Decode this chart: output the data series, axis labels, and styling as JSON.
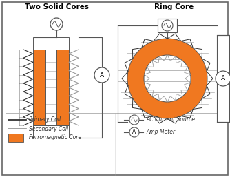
{
  "title_left": "Two Solid Cores",
  "title_right": "Ring Core",
  "orange_color": "#F07820",
  "primary_coil_color": "#333333",
  "secondary_coil_color": "#999999",
  "wire_color": "#555555",
  "legend_items_left": [
    "Primary Coil",
    "Secondary Coil",
    "Ferromagnetic Core"
  ],
  "legend_items_right": [
    "AC Current Source",
    "Amp Meter"
  ],
  "font_size_title": 7.5,
  "font_size_legend": 5.5,
  "lw_border": 1.2,
  "lw_coil": 0.8,
  "lw_wire": 0.8
}
